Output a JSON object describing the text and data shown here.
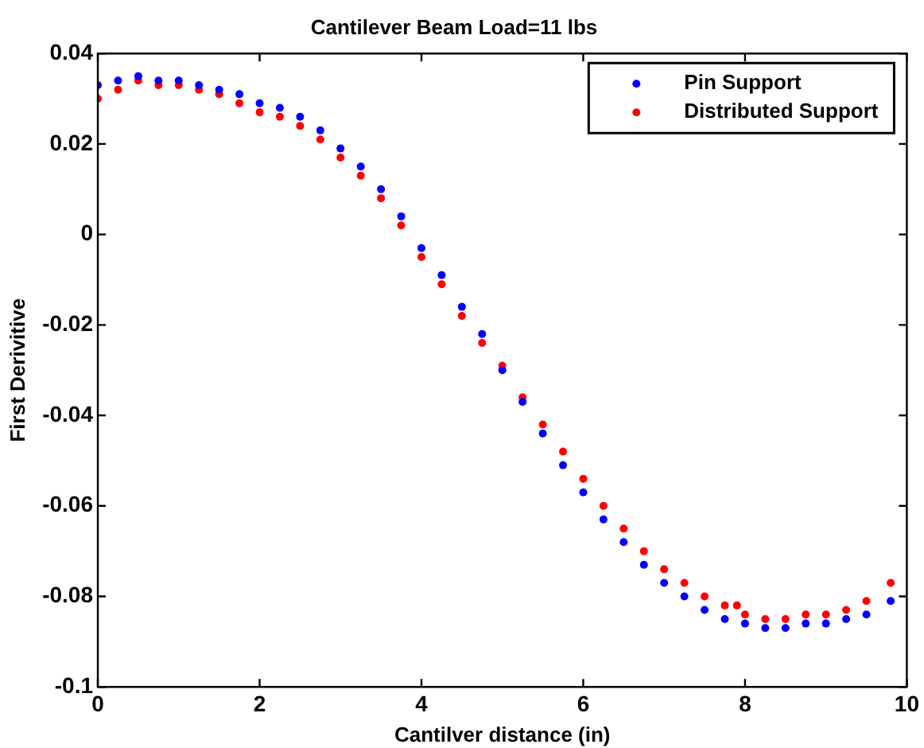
{
  "chart_data": {
    "type": "scatter",
    "title": "Cantilever Beam Load=11 lbs",
    "xlabel": "Cantilver distance (in)",
    "ylabel": "First Derivitive",
    "xlim": [
      0,
      10
    ],
    "xticks": [
      0,
      2,
      4,
      6,
      8,
      10
    ],
    "ylim": [
      -0.1,
      0.04
    ],
    "yticks": [
      -0.1,
      -0.08,
      -0.06,
      -0.04,
      -0.02,
      0,
      0.02,
      0.04
    ],
    "grid": false,
    "legend": "top right",
    "marker": "circle",
    "series": [
      {
        "name": "Pin Support",
        "color": "#0000ff",
        "x": [
          0,
          0.25,
          0.5,
          0.75,
          1,
          1.25,
          1.5,
          1.75,
          2,
          2.25,
          2.5,
          2.75,
          3,
          3.25,
          3.5,
          3.75,
          4,
          4.25,
          4.5,
          4.75,
          5,
          5.25,
          5.5,
          5.75,
          6,
          6.25,
          6.5,
          6.75,
          7,
          7.25,
          7.5,
          7.75,
          8,
          8.25,
          8.5,
          8.75,
          9,
          9.25,
          9.5,
          9.8
        ],
        "values": [
          0.033,
          0.034,
          0.035,
          0.034,
          0.034,
          0.033,
          0.032,
          0.031,
          0.029,
          0.028,
          0.026,
          0.023,
          0.019,
          0.015,
          0.01,
          0.004,
          -0.003,
          -0.009,
          -0.016,
          -0.022,
          -0.03,
          -0.037,
          -0.044,
          -0.051,
          -0.057,
          -0.063,
          -0.068,
          -0.073,
          -0.077,
          -0.08,
          -0.083,
          -0.085,
          -0.086,
          -0.087,
          -0.087,
          -0.086,
          -0.086,
          -0.085,
          -0.084,
          -0.081
        ]
      },
      {
        "name": "Distributed Support",
        "color": "#ff0000",
        "x": [
          0,
          0.25,
          0.5,
          0.75,
          1,
          1.25,
          1.5,
          1.75,
          2,
          2.25,
          2.5,
          2.75,
          3,
          3.25,
          3.5,
          3.75,
          4,
          4.25,
          4.5,
          4.75,
          5,
          5.25,
          5.5,
          5.75,
          6,
          6.25,
          6.5,
          6.75,
          7,
          7.25,
          7.5,
          7.75,
          7.9,
          8,
          8.25,
          8.5,
          8.75,
          9,
          9.25,
          9.5,
          9.8
        ],
        "values": [
          0.03,
          0.032,
          0.034,
          0.033,
          0.033,
          0.032,
          0.031,
          0.029,
          0.027,
          0.026,
          0.024,
          0.021,
          0.017,
          0.013,
          0.008,
          0.002,
          -0.005,
          -0.011,
          -0.018,
          -0.024,
          -0.029,
          -0.036,
          -0.042,
          -0.048,
          -0.054,
          -0.06,
          -0.065,
          -0.07,
          -0.074,
          -0.077,
          -0.08,
          -0.082,
          -0.082,
          -0.084,
          -0.085,
          -0.085,
          -0.084,
          -0.084,
          -0.083,
          -0.081,
          -0.077
        ]
      }
    ]
  }
}
